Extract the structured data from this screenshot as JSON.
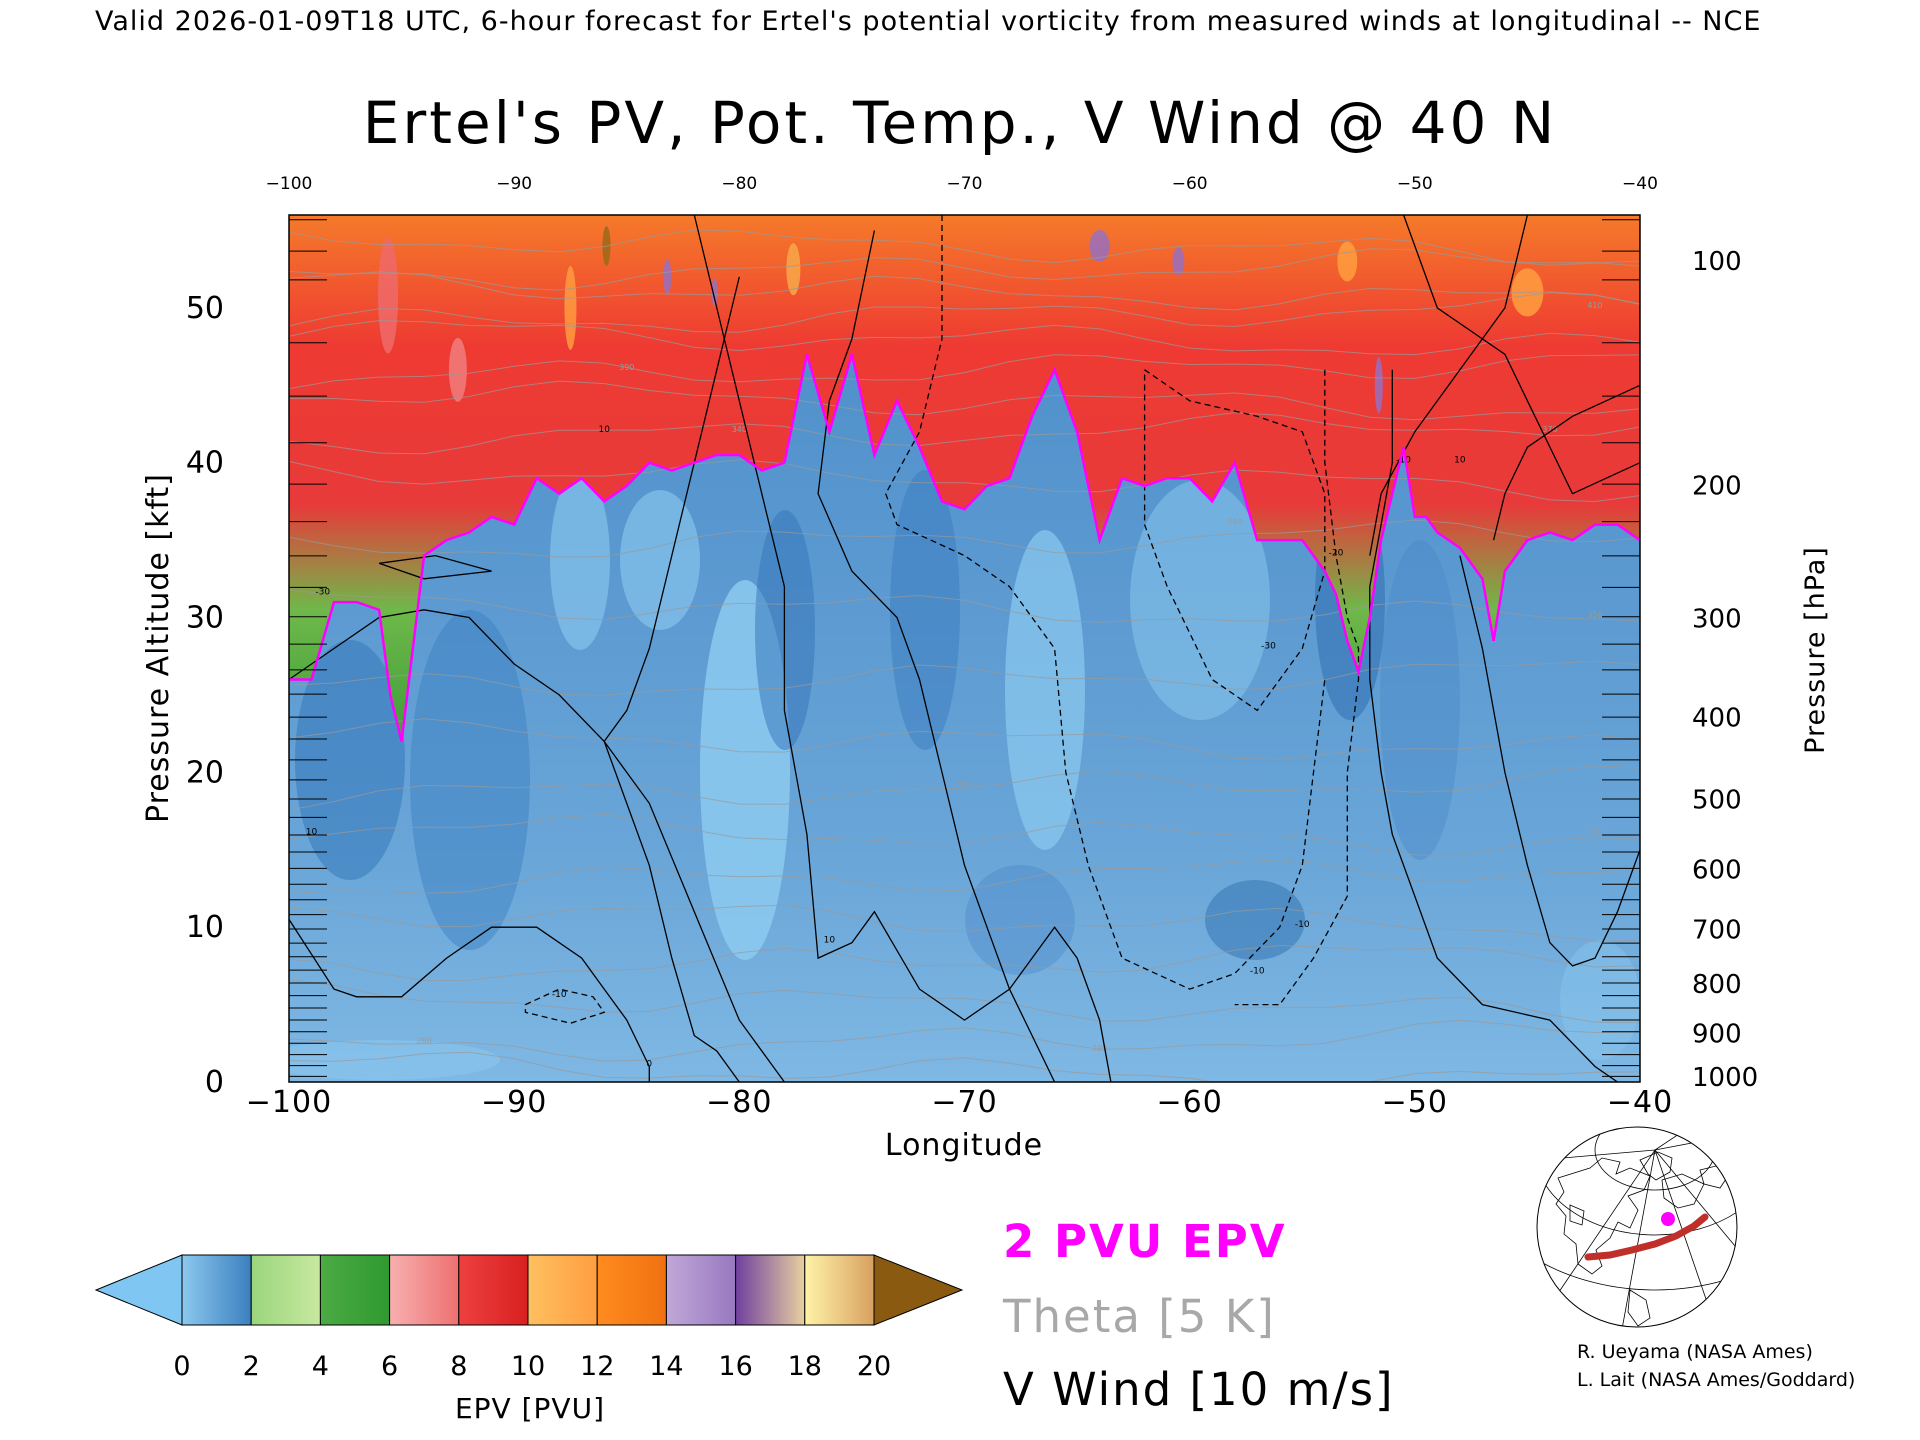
{
  "header": "Valid 2026-01-09T18 UTC, 6-hour forecast for Ertel's potential vorticity from measured winds at longitudinal -- NCE",
  "chart_data": {
    "type": "heatmap",
    "title": "Ertel's PV, Pot. Temp., V Wind @ 40 N",
    "xlabel": "Longitude",
    "ylabel": "Pressure Altitude [kft]",
    "y2label": "Pressure [hPa]",
    "xlim": [
      -100,
      -40
    ],
    "ylim": [
      0,
      56
    ],
    "x_ticks": [
      -100,
      -90,
      -80,
      -70,
      -60,
      -50,
      -40
    ],
    "y_ticks": [
      0,
      10,
      20,
      30,
      40,
      50
    ],
    "pressure_ticks": [
      {
        "hPa": 100,
        "kft": 53.1
      },
      {
        "hPa": 200,
        "kft": 38.6
      },
      {
        "hPa": 300,
        "kft": 30.0
      },
      {
        "hPa": 400,
        "kft": 23.6
      },
      {
        "hPa": 500,
        "kft": 18.3
      },
      {
        "hPa": 600,
        "kft": 13.8
      },
      {
        "hPa": 700,
        "kft": 9.9
      },
      {
        "hPa": 800,
        "kft": 6.4
      },
      {
        "hPa": 900,
        "kft": 3.2
      },
      {
        "hPa": 1000,
        "kft": 0.4
      }
    ],
    "pressure_minor_ticks": [
      70,
      80,
      90,
      125,
      150,
      175,
      225,
      250,
      275,
      325,
      350,
      375,
      425,
      450,
      475,
      525,
      550,
      575,
      625,
      650,
      675,
      725,
      750,
      775,
      825,
      850,
      875,
      925,
      950,
      975
    ],
    "tropopause_2pvu": {
      "x": [
        -100,
        -99,
        -98,
        -97,
        -96,
        -95.5,
        -95,
        -94,
        -93,
        -92,
        -91,
        -90,
        -89,
        -88,
        -87,
        -86,
        -85,
        -84,
        -83,
        -82,
        -81,
        -80,
        -79,
        -78,
        -77,
        -76,
        -75,
        -74,
        -73,
        -72,
        -71,
        -70,
        -69,
        -68,
        -67,
        -66,
        -65,
        -64,
        -63,
        -62,
        -61,
        -60,
        -59,
        -58,
        -57,
        -56,
        -55,
        -54,
        -53.5,
        -53,
        -52.5,
        -52,
        -51.5,
        -51,
        -50.5,
        -50,
        -49.5,
        -49,
        -48,
        -47,
        -46.5,
        -46,
        -45,
        -44,
        -43,
        -42,
        -41,
        -40
      ],
      "y": [
        26,
        26,
        31,
        31,
        30.5,
        25,
        22,
        34,
        35,
        35.5,
        36.5,
        36,
        39,
        38,
        39,
        37.5,
        38.5,
        40,
        39.5,
        40,
        40.5,
        40.5,
        39.5,
        40,
        47,
        42,
        47,
        40.5,
        44,
        41,
        37.5,
        37,
        38.5,
        39,
        43,
        46,
        42,
        35,
        39,
        38.5,
        39,
        39,
        37.5,
        40,
        35,
        35,
        35,
        33,
        31.5,
        28.5,
        26.5,
        30,
        35,
        38,
        41,
        36.5,
        36.5,
        35.5,
        34.5,
        32.5,
        28.5,
        33,
        35,
        35.5,
        35,
        36,
        36,
        35
      ]
    },
    "v_wind_contour_labels": [
      "10",
      "0",
      "-10",
      "-20",
      "-30"
    ],
    "theta_contour_labels": [
      "280",
      "290",
      "300",
      "310",
      "320",
      "330",
      "340",
      "350",
      "370",
      "390",
      "410"
    ],
    "colorbar": {
      "label": "EPV [PVU]",
      "ticks": [
        0,
        2,
        4,
        6,
        8,
        10,
        12,
        14,
        16,
        18,
        20
      ],
      "bands": [
        {
          "from": 0,
          "to": 2,
          "colors": [
            "#8cc8ee",
            "#3b80bf"
          ]
        },
        {
          "from": 2,
          "to": 4,
          "colors": [
            "#9ad67c",
            "#c8e8a0"
          ]
        },
        {
          "from": 4,
          "to": 6,
          "colors": [
            "#4caa44",
            "#2f9a30"
          ]
        },
        {
          "from": 6,
          "to": 8,
          "colors": [
            "#f8b0b0",
            "#ee7070"
          ]
        },
        {
          "from": 8,
          "to": 10,
          "colors": [
            "#ee4040",
            "#d82020"
          ]
        },
        {
          "from": 10,
          "to": 12,
          "colors": [
            "#ffc060",
            "#ff9e40"
          ]
        },
        {
          "from": 12,
          "to": 14,
          "colors": [
            "#ff8c20",
            "#f07010"
          ]
        },
        {
          "from": 14,
          "to": 16,
          "colors": [
            "#c0a8d8",
            "#9878c0"
          ]
        },
        {
          "from": 16,
          "to": 18,
          "colors": [
            "#7040a0",
            "#e8d0a0"
          ]
        },
        {
          "from": 18,
          "to": 20,
          "colors": [
            "#fff3a8",
            "#d8a060"
          ]
        }
      ],
      "under_color": "#7fc6f2",
      "over_color": "#8a5a10"
    }
  },
  "legend": {
    "pvu": "2 PVU EPV",
    "theta": "Theta [5 K]",
    "vwind": "V Wind [10 m/s]",
    "pvu_color": "#ff00ff",
    "theta_color": "#a8a8a8",
    "vwind_color": "#000000"
  },
  "credits": {
    "line1": "R. Ueyama (NASA Ames)",
    "line2": "L. Lait (NASA Ames/Goddard)"
  },
  "inset_map": {
    "track_color": "#c0302a",
    "marker_color": "#ff00ff"
  }
}
